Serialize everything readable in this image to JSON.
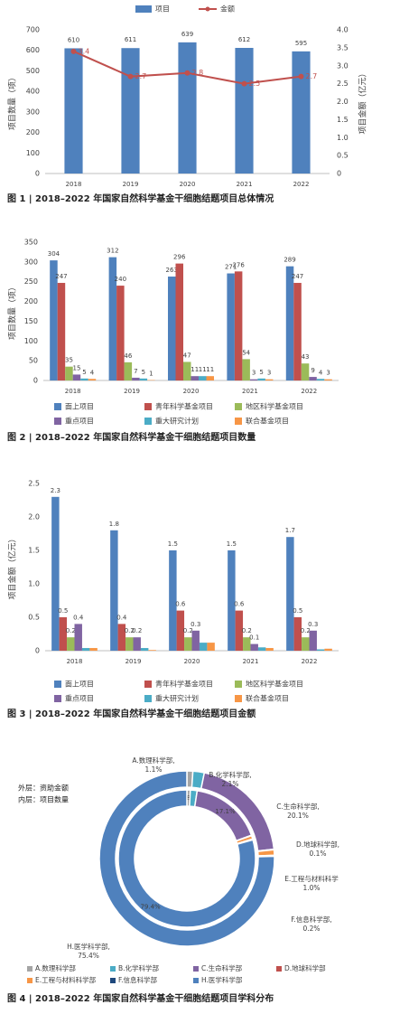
{
  "chart_data": [
    {
      "type": "combo",
      "caption": "图 1 | 2018–2022 年国家自然科学基金干细胞结题项目总体情况",
      "categories": [
        "2018",
        "2019",
        "2020",
        "2021",
        "2022"
      ],
      "ylabel": "项目数量（项）",
      "y2label": "项目金额（亿元）",
      "ylim": [
        0,
        700
      ],
      "yticks": [
        0,
        100,
        200,
        300,
        400,
        500,
        600,
        700
      ],
      "y2lim": [
        0,
        4
      ],
      "y2ticks": [
        0,
        0.5,
        {
          "value": 1,
          "label": "1.0"
        },
        1.5,
        {
          "value": 2,
          "label": "2.0"
        },
        2.5,
        {
          "value": 3,
          "label": "3.0"
        },
        3.5,
        {
          "value": 4,
          "label": "4.0"
        }
      ],
      "series": [
        {
          "name": "项目",
          "color": "#4f81bd",
          "values": [
            610,
            611,
            639,
            612,
            595
          ]
        },
        {
          "name": "金额",
          "color": "#c0504d",
          "values": [
            3.4,
            2.7,
            2.8,
            2.5,
            2.7
          ],
          "axis": "y2"
        }
      ]
    },
    {
      "type": "bar",
      "caption": "图 2 | 2018–2022 年国家自然科学基金干细胞结题项目数量",
      "categories": [
        "2018",
        "2019",
        "2020",
        "2021",
        "2022"
      ],
      "ylabel": "项目数量（项）",
      "ylim": [
        0,
        350
      ],
      "yticks": [
        0,
        50,
        100,
        150,
        200,
        250,
        300,
        350
      ],
      "series": [
        {
          "name": "面上项目",
          "color": "#4f81bd",
          "values": [
            304,
            312,
            263,
            271,
            289
          ],
          "data_labels": true
        },
        {
          "name": "青年科学基金项目",
          "color": "#c0504d",
          "values": [
            247,
            240,
            296,
            276,
            247
          ],
          "data_labels": true
        },
        {
          "name": "地区科学基金项目",
          "color": "#9bbb59",
          "values": [
            35,
            46,
            47,
            54,
            43
          ],
          "data_labels": true
        },
        {
          "name": "重点项目",
          "color": "#8064a2",
          "values": [
            15,
            7,
            11,
            3,
            9
          ],
          "data_labels": true
        },
        {
          "name": "重大研究计划",
          "color": "#4bacc6",
          "values": [
            5,
            5,
            11,
            5,
            4
          ],
          "data_labels": true
        },
        {
          "name": "联合基金项目",
          "color": "#f79646",
          "values": [
            4,
            1,
            11,
            3,
            3
          ],
          "data_labels": true
        }
      ]
    },
    {
      "type": "bar",
      "caption": "图 3 | 2018–2022 年国家自然科学基金干细胞结题项目金额",
      "categories": [
        "2018",
        "2019",
        "2020",
        "2021",
        "2022"
      ],
      "ylabel": "项目金额（亿元）",
      "ylim": [
        0,
        2.5
      ],
      "yticks": [
        0,
        0.5,
        {
          "value": 1,
          "label": "1.0"
        },
        1.5,
        {
          "value": 2,
          "label": "2.0"
        },
        2.5
      ],
      "series": [
        {
          "name": "面上项目",
          "color": "#4f81bd",
          "values": [
            2.3,
            1.8,
            1.5,
            1.5,
            1.7
          ],
          "data_labels": true
        },
        {
          "name": "青年科学基金项目",
          "color": "#c0504d",
          "values": [
            0.5,
            0.4,
            0.6,
            0.6,
            0.5
          ],
          "data_labels": true
        },
        {
          "name": "地区科学基金项目",
          "color": "#9bbb59",
          "values": [
            0.2,
            0.2,
            0.2,
            0.2,
            0.2
          ],
          "data_labels": true
        },
        {
          "name": "重点项目",
          "color": "#8064a2",
          "values": [
            0.4,
            0.2,
            0.3,
            0.1,
            0.3
          ],
          "data_labels": true
        },
        {
          "name": "重大研究计划",
          "color": "#4bacc6",
          "values": [
            0.04,
            0.04,
            0.12,
            0.05,
            0.02
          ],
          "data_labels": false
        },
        {
          "name": "联合基金项目",
          "color": "#f79646",
          "values": [
            0.04,
            0.01,
            0.12,
            0.04,
            0.03
          ],
          "data_labels": false
        }
      ]
    },
    {
      "type": "donut",
      "caption": "图 4 | 2018–2022 年国家自然科学基金干细胞结题项目学科分布",
      "notes": [
        "外层：资助金额",
        "内层：项目数量"
      ],
      "categories": [
        "A.数理科学部",
        "B.化学科学部",
        "C.生命科学部",
        "D.地球科学部",
        "E.工程与材料科学部",
        "F.信息科学部",
        "H.医学科学部"
      ],
      "colors": [
        "#a5a5a5",
        "#4bacc6",
        "#8064a2",
        "#c0504d",
        "#f79646",
        "#1f497d",
        "#4f81bd"
      ],
      "outer": {
        "values": [
          1.1,
          2.1,
          20.1,
          0.1,
          1.0,
          0.2,
          75.4
        ],
        "value_labels": [
          "1.1%",
          "2.1%",
          "20.1%",
          "0.1%",
          "1.0%",
          "0.2%",
          "75.4%"
        ],
        "callouts": [
          "A.数理科学部,",
          "B.化学科学部,",
          "C.生命科学部,",
          "D.地球科学部,",
          "E.工程与材料科学",
          "F.信息科学部,",
          "H.医学科学部,"
        ]
      },
      "inner": {
        "values": [
          0.8,
          1.6,
          17.1,
          0.1,
          0.8,
          0.2,
          79.4
        ],
        "value_labels": [
          "0.8%",
          null,
          "17.1%",
          null,
          null,
          null,
          "79.4%"
        ]
      }
    }
  ]
}
